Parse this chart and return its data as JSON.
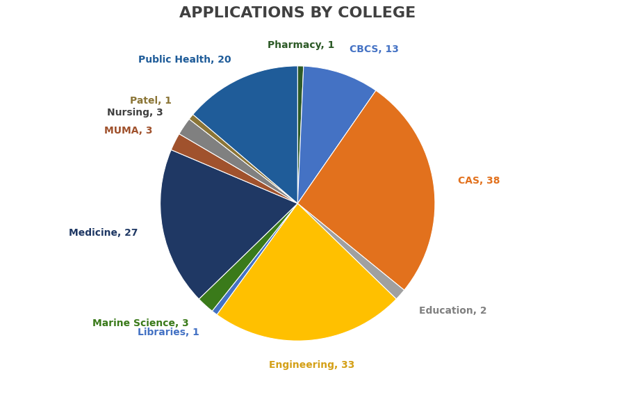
{
  "title": "APPLICATIONS BY COLLEGE",
  "labels": [
    "Pharmacy",
    "CBCS",
    "CAS",
    "Education",
    "Engineering",
    "Libraries",
    "Marine Science",
    "Medicine",
    "MUMA",
    "Nursing",
    "Patel",
    "Public Health"
  ],
  "values": [
    1,
    13,
    38,
    2,
    33,
    1,
    3,
    27,
    3,
    3,
    1,
    20
  ],
  "colors": [
    "#2d5a27",
    "#4472c4",
    "#e2711d",
    "#a0a0a0",
    "#ffc000",
    "#4472c4",
    "#3a7a1a",
    "#1f3864",
    "#a0522d",
    "#808080",
    "#8b7536",
    "#1f5c99"
  ],
  "label_colors": [
    "#2d5a27",
    "#4472c4",
    "#e2711d",
    "#808080",
    "#d4a017",
    "#4472c4",
    "#3a7a1a",
    "#1f3864",
    "#a0522d",
    "#404040",
    "#8b7536",
    "#1f5c99"
  ],
  "title_color": "#404040",
  "background_color": "#ffffff",
  "label_fontsize": 10,
  "title_fontsize": 16,
  "label_distances": [
    1.15,
    1.18,
    1.18,
    1.18,
    1.18,
    1.18,
    1.18,
    1.18,
    1.18,
    1.18,
    1.18,
    1.15
  ]
}
